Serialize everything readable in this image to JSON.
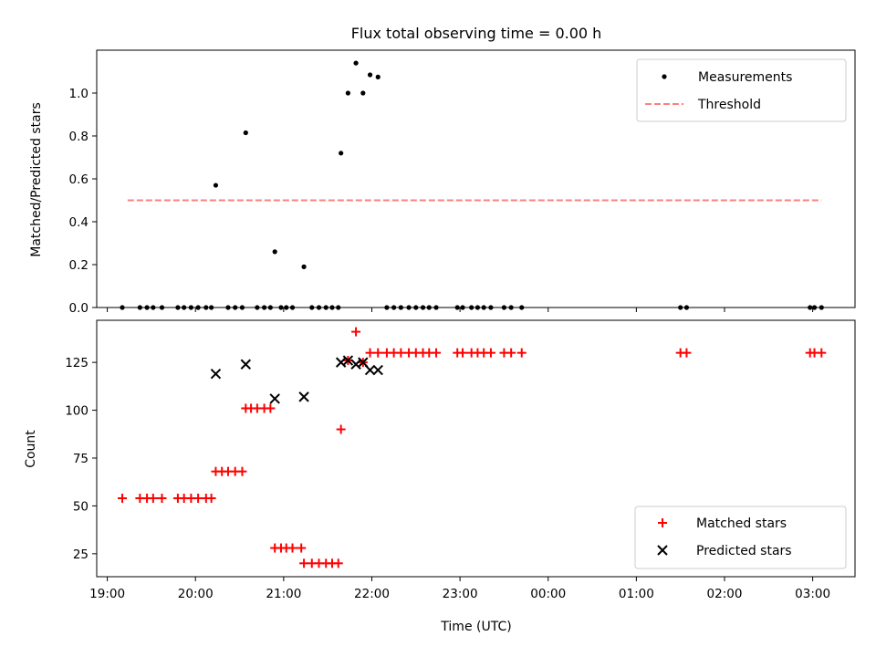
{
  "chart_data": [
    {
      "type": "scatter",
      "title": "Flux total observing time = 0.00 h",
      "xlabel": "",
      "ylabel": "Matched/Predicted stars",
      "xlim": [
        18.88,
        27.48
      ],
      "ylim": [
        0.0,
        1.2
      ],
      "yticks": [
        "0.0",
        "0.2",
        "0.4",
        "0.6",
        "0.8",
        "1.0"
      ],
      "legend_position": "top-right",
      "series": [
        {
          "name": "Measurements",
          "kind": "scatter-dot",
          "color": "#000000",
          "points": [
            [
              19.17,
              0.0
            ],
            [
              19.37,
              0.0
            ],
            [
              19.45,
              0.0
            ],
            [
              19.52,
              0.0
            ],
            [
              19.62,
              0.0
            ],
            [
              19.8,
              0.0
            ],
            [
              19.87,
              0.0
            ],
            [
              19.95,
              0.0
            ],
            [
              20.03,
              0.0
            ],
            [
              20.12,
              0.0
            ],
            [
              20.18,
              0.0
            ],
            [
              20.23,
              0.57
            ],
            [
              20.57,
              0.815
            ],
            [
              20.37,
              0.0
            ],
            [
              20.45,
              0.0
            ],
            [
              20.53,
              0.0
            ],
            [
              20.7,
              0.0
            ],
            [
              20.78,
              0.0
            ],
            [
              20.85,
              0.0
            ],
            [
              20.9,
              0.26
            ],
            [
              20.97,
              0.0
            ],
            [
              21.03,
              0.0
            ],
            [
              21.1,
              0.0
            ],
            [
              21.23,
              0.19
            ],
            [
              21.32,
              0.0
            ],
            [
              21.4,
              0.0
            ],
            [
              21.48,
              0.0
            ],
            [
              21.55,
              0.0
            ],
            [
              21.62,
              0.0
            ],
            [
              21.65,
              0.72
            ],
            [
              21.73,
              1.0
            ],
            [
              21.82,
              1.14
            ],
            [
              21.9,
              1.0
            ],
            [
              21.98,
              1.085
            ],
            [
              22.07,
              1.075
            ],
            [
              22.17,
              0.0
            ],
            [
              22.25,
              0.0
            ],
            [
              22.33,
              0.0
            ],
            [
              22.42,
              0.0
            ],
            [
              22.5,
              0.0
            ],
            [
              22.58,
              0.0
            ],
            [
              22.65,
              0.0
            ],
            [
              22.73,
              0.0
            ],
            [
              22.97,
              0.0
            ],
            [
              23.03,
              0.0
            ],
            [
              23.13,
              0.0
            ],
            [
              23.2,
              0.0
            ],
            [
              23.27,
              0.0
            ],
            [
              23.35,
              0.0
            ],
            [
              23.5,
              0.0
            ],
            [
              23.58,
              0.0
            ],
            [
              23.7,
              0.0
            ],
            [
              25.5,
              0.0
            ],
            [
              25.57,
              0.0
            ],
            [
              26.97,
              0.0
            ],
            [
              27.02,
              0.0
            ],
            [
              27.1,
              0.0
            ]
          ]
        },
        {
          "name": "Threshold",
          "kind": "dashed-line",
          "color": "#ff7f7f",
          "x": [
            19.23,
            27.1
          ],
          "y": [
            0.5,
            0.5
          ]
        }
      ]
    },
    {
      "type": "scatter",
      "title": "",
      "xlabel": "Time (UTC)",
      "ylabel": "Count",
      "xlim": [
        18.88,
        27.48
      ],
      "ylim": [
        13,
        147
      ],
      "yticks": [
        "25",
        "50",
        "75",
        "100",
        "125"
      ],
      "xticks": [
        "19:00",
        "20:00",
        "21:00",
        "22:00",
        "23:00",
        "00:00",
        "01:00",
        "02:00",
        "03:00"
      ],
      "legend_position": "bottom-right",
      "series": [
        {
          "name": "Matched stars",
          "kind": "plus",
          "color": "#ff0000",
          "points": [
            [
              19.17,
              54
            ],
            [
              19.37,
              54
            ],
            [
              19.45,
              54
            ],
            [
              19.52,
              54
            ],
            [
              19.62,
              54
            ],
            [
              19.8,
              54
            ],
            [
              19.87,
              54
            ],
            [
              19.95,
              54
            ],
            [
              20.03,
              54
            ],
            [
              20.12,
              54
            ],
            [
              20.18,
              54
            ],
            [
              20.23,
              68
            ],
            [
              20.3,
              68
            ],
            [
              20.37,
              68
            ],
            [
              20.45,
              68
            ],
            [
              20.53,
              68
            ],
            [
              20.57,
              101
            ],
            [
              20.63,
              101
            ],
            [
              20.7,
              101
            ],
            [
              20.78,
              101
            ],
            [
              20.85,
              101
            ],
            [
              20.9,
              28
            ],
            [
              20.97,
              28
            ],
            [
              21.03,
              28
            ],
            [
              21.1,
              28
            ],
            [
              21.2,
              28
            ],
            [
              21.23,
              20
            ],
            [
              21.32,
              20
            ],
            [
              21.4,
              20
            ],
            [
              21.48,
              20
            ],
            [
              21.55,
              20
            ],
            [
              21.62,
              20
            ],
            [
              21.65,
              90
            ],
            [
              21.73,
              126
            ],
            [
              21.82,
              141
            ],
            [
              21.9,
              125
            ],
            [
              21.98,
              130
            ],
            [
              22.07,
              130
            ],
            [
              22.17,
              130
            ],
            [
              22.25,
              130
            ],
            [
              22.33,
              130
            ],
            [
              22.42,
              130
            ],
            [
              22.5,
              130
            ],
            [
              22.58,
              130
            ],
            [
              22.65,
              130
            ],
            [
              22.73,
              130
            ],
            [
              22.97,
              130
            ],
            [
              23.03,
              130
            ],
            [
              23.13,
              130
            ],
            [
              23.2,
              130
            ],
            [
              23.27,
              130
            ],
            [
              23.35,
              130
            ],
            [
              23.5,
              130
            ],
            [
              23.58,
              130
            ],
            [
              23.7,
              130
            ],
            [
              25.5,
              130
            ],
            [
              25.57,
              130
            ],
            [
              26.97,
              130
            ],
            [
              27.02,
              130
            ],
            [
              27.1,
              130
            ]
          ]
        },
        {
          "name": "Predicted stars",
          "kind": "x",
          "color": "#000000",
          "points": [
            [
              20.23,
              119
            ],
            [
              20.57,
              124
            ],
            [
              20.9,
              106
            ],
            [
              21.23,
              107
            ],
            [
              21.65,
              125
            ],
            [
              21.73,
              126
            ],
            [
              21.82,
              124
            ],
            [
              21.9,
              125
            ],
            [
              21.98,
              121
            ],
            [
              22.07,
              121
            ]
          ]
        }
      ]
    }
  ]
}
